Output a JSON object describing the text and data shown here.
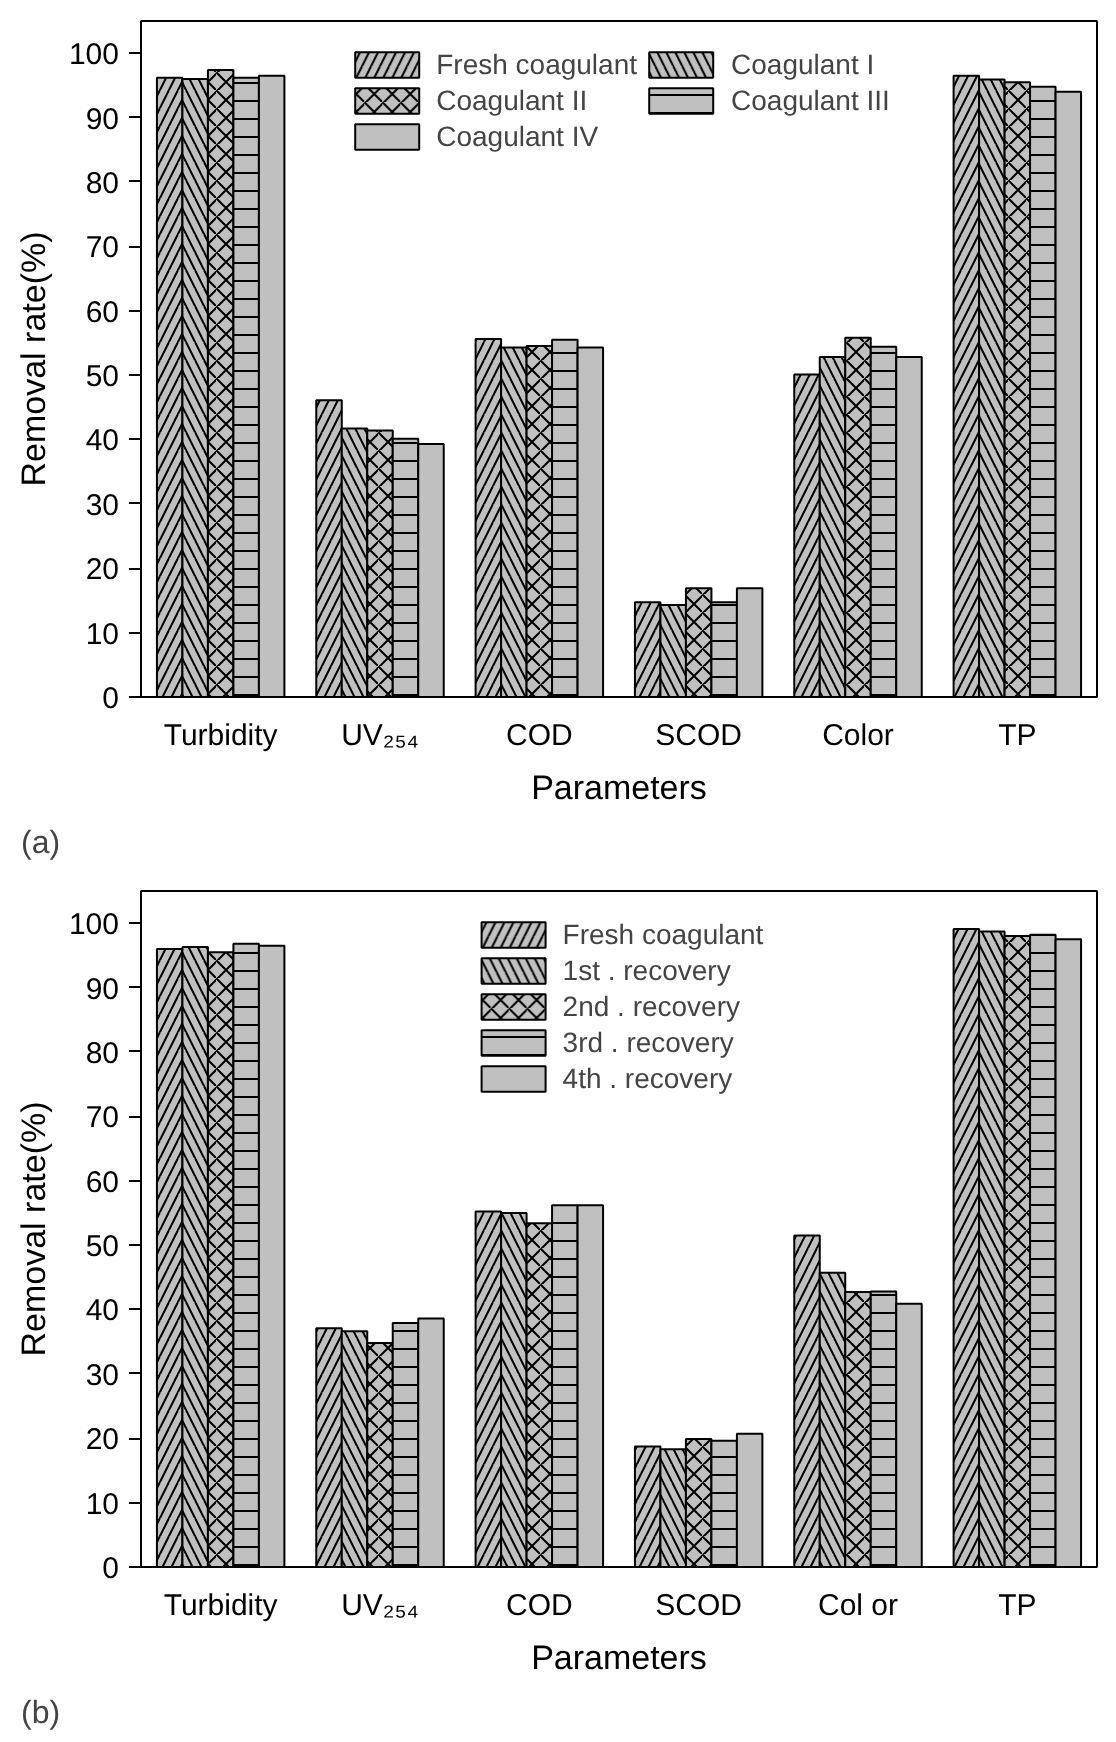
{
  "chart_data": [
    {
      "type": "bar",
      "xlabel": "Parameters",
      "ylabel": "Removal rate(%)",
      "annotations": [
        "(a)"
      ],
      "categories": [
        "Turbidity",
        "UV₂₅₄",
        "COD",
        "SCOD",
        "Color",
        "TP"
      ],
      "ylim": [
        0,
        105
      ],
      "yticks": [
        0,
        10,
        20,
        30,
        40,
        50,
        60,
        70,
        80,
        90,
        100
      ],
      "legend": "top",
      "grid": false,
      "series": [
        {
          "name": "Fresh coagulant",
          "color": "#c0c0c0",
          "values": [
            96.2,
            46.1,
            55.6,
            14.7,
            50.1,
            96.5
          ]
        },
        {
          "name": "Coagulant I",
          "color": "#c0c0c0",
          "values": [
            96.0,
            41.7,
            54.3,
            14.3,
            52.8,
            95.9
          ]
        },
        {
          "name": "Coagulant II",
          "color": "#c0c0c0",
          "values": [
            97.4,
            41.4,
            54.5,
            16.9,
            55.8,
            95.5
          ]
        },
        {
          "name": "Coagulant III",
          "color": "#c0c0c0",
          "values": [
            96.2,
            40.1,
            55.5,
            14.7,
            54.4,
            94.8
          ]
        },
        {
          "name": "Coagulant IV",
          "color": "#c0c0c0",
          "values": [
            96.5,
            39.3,
            54.3,
            16.9,
            52.8,
            94.0
          ]
        }
      ]
    },
    {
      "type": "bar",
      "xlabel": "Parameters",
      "ylabel": "Removal rate(%)",
      "annotations": [
        "(b)"
      ],
      "categories": [
        "Turbidity",
        "UV₂₅₄",
        "COD",
        "SCOD",
        "Col or",
        "TP"
      ],
      "ylim": [
        0,
        105
      ],
      "yticks": [
        0,
        10,
        20,
        30,
        40,
        50,
        60,
        70,
        80,
        90,
        100
      ],
      "legend": "top",
      "grid": false,
      "series": [
        {
          "name": "Fresh coagulant",
          "color": "#c0c0c0",
          "values": [
            96.0,
            37.1,
            55.2,
            18.7,
            51.5,
            99.1
          ]
        },
        {
          "name": "1st . recovery",
          "color": "#c0c0c0",
          "values": [
            96.3,
            36.6,
            55.0,
            18.3,
            45.7,
            98.7
          ]
        },
        {
          "name": "2nd . recovery",
          "color": "#c0c0c0",
          "values": [
            95.5,
            34.8,
            53.4,
            19.9,
            42.7,
            98.0
          ]
        },
        {
          "name": "3rd . recovery",
          "color": "#c0c0c0",
          "values": [
            96.8,
            37.9,
            56.2,
            19.6,
            42.8,
            98.2
          ]
        },
        {
          "name": "4th . recovery",
          "color": "#c0c0c0",
          "values": [
            96.5,
            38.6,
            56.2,
            20.7,
            40.9,
            97.5
          ]
        }
      ]
    }
  ]
}
